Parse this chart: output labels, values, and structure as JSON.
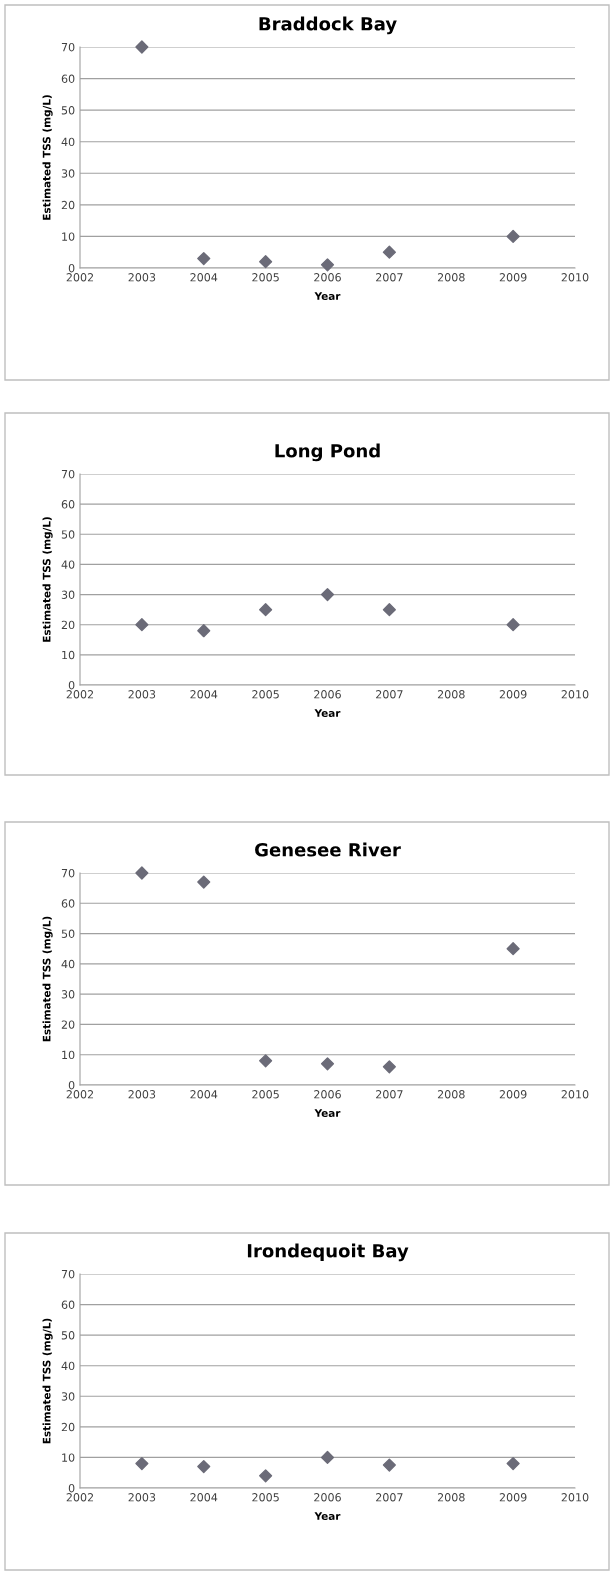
{
  "chart_data": [
    {
      "type": "scatter",
      "title": "Braddock Bay",
      "xlabel": "Year",
      "ylabel": "Estimated TSS (mg/L)",
      "x": [
        2003,
        2004,
        2005,
        2006,
        2007,
        2009
      ],
      "values": [
        70,
        3,
        2,
        1,
        5,
        10
      ],
      "color": "#6b6b78",
      "marker": "diamond",
      "xlim": [
        2002,
        2010
      ],
      "xticks": [
        2002,
        2003,
        2004,
        2005,
        2006,
        2007,
        2008,
        2009,
        2010
      ],
      "ylim": [
        0,
        70
      ],
      "yticks": [
        0,
        10,
        20,
        30,
        40,
        50,
        60,
        70
      ],
      "grid": "y"
    },
    {
      "type": "scatter",
      "title": "Long Pond",
      "xlabel": "Year",
      "ylabel": "Estimated TSS (mg/L)",
      "x": [
        2003,
        2004,
        2005,
        2006,
        2007,
        2009
      ],
      "values": [
        20,
        18,
        25,
        30,
        25,
        20
      ],
      "color": "#6b6b78",
      "marker": "diamond",
      "xlim": [
        2002,
        2010
      ],
      "xticks": [
        2002,
        2003,
        2004,
        2005,
        2006,
        2007,
        2008,
        2009,
        2010
      ],
      "ylim": [
        0,
        70
      ],
      "yticks": [
        0,
        10,
        20,
        30,
        40,
        50,
        60,
        70
      ],
      "grid": "y"
    },
    {
      "type": "scatter",
      "title": "Genesee River",
      "xlabel": "Year",
      "ylabel": "Estimated TSS (mg/L)",
      "x": [
        2003,
        2004,
        2005,
        2006,
        2007,
        2009
      ],
      "values": [
        70,
        67,
        8,
        7,
        6,
        45
      ],
      "color": "#6b6b78",
      "marker": "diamond",
      "xlim": [
        2002,
        2010
      ],
      "xticks": [
        2002,
        2003,
        2004,
        2005,
        2006,
        2007,
        2008,
        2009,
        2010
      ],
      "ylim": [
        0,
        70
      ],
      "yticks": [
        0,
        10,
        20,
        30,
        40,
        50,
        60,
        70
      ],
      "grid": "y"
    },
    {
      "type": "scatter",
      "title": "Irondequoit Bay",
      "xlabel": "Year",
      "ylabel": "Estimated TSS (mg/L)",
      "x": [
        2003,
        2004,
        2005,
        2006,
        2007,
        2009
      ],
      "values": [
        8,
        7,
        4,
        10,
        7.5,
        8
      ],
      "color": "#6b6b78",
      "marker": "diamond",
      "xlim": [
        2002,
        2010
      ],
      "xticks": [
        2002,
        2003,
        2004,
        2005,
        2006,
        2007,
        2008,
        2009,
        2010
      ],
      "ylim": [
        0,
        70
      ],
      "yticks": [
        0,
        10,
        20,
        30,
        40,
        50,
        60,
        70
      ],
      "grid": "y"
    }
  ]
}
